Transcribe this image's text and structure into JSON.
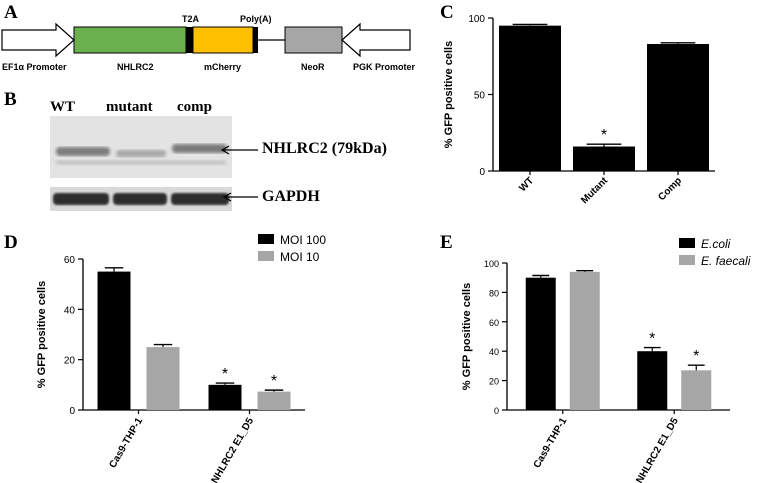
{
  "panels": {
    "a": "A",
    "b": "B",
    "c": "C",
    "d": "D",
    "e": "E"
  },
  "construct": {
    "t2a": "T2A",
    "polya": "Poly(A)",
    "ef1a": "EF1α Promoter",
    "nhlrc2": "NHLRC2",
    "mcherry": "mCherry",
    "neor": "NeoR",
    "pgk": "PGK Promoter",
    "colors": {
      "nhlrc2": "#6ab04c",
      "mcherry": "#ffc000",
      "neor": "#a6a6a6",
      "linker": "#000000"
    }
  },
  "blot": {
    "lanes": [
      "WT",
      "mutant",
      "comp"
    ],
    "band1_label": "NHLRC2 (79kDa)",
    "band2_label": "GAPDH"
  },
  "chart_data": [
    {
      "id": "C",
      "type": "bar",
      "categories": [
        "WT",
        "Mutant",
        "Comp"
      ],
      "series": [
        {
          "values": [
            95,
            16,
            83
          ],
          "errors": [
            0.8,
            1.5,
            0.8
          ],
          "color": "#000000",
          "annotations": [
            "",
            "*",
            ""
          ]
        }
      ],
      "ylabel": "% GFP positive cells",
      "ylim": [
        0,
        100
      ],
      "yticks": [
        0,
        50,
        100
      ]
    },
    {
      "id": "D",
      "type": "bar",
      "categories": [
        "Cas9-THP-1",
        "NHLRC2 E1_D5"
      ],
      "series": [
        {
          "name": "MOI 100",
          "values": [
            55,
            10
          ],
          "errors": [
            1.5,
            0.7
          ],
          "color": "#000000",
          "annotations": [
            "",
            "*"
          ]
        },
        {
          "name": "MOI 10",
          "values": [
            25,
            7.3
          ],
          "errors": [
            1.0,
            0.6
          ],
          "color": "#a6a6a6",
          "annotations": [
            "",
            "*"
          ]
        }
      ],
      "ylabel": "% GFP positive cells",
      "ylim": [
        0,
        60
      ],
      "yticks": [
        0,
        20,
        40,
        60
      ],
      "legend": "top-right"
    },
    {
      "id": "E",
      "type": "bar",
      "categories": [
        "Cas9-THP-1",
        "NHLRC2 E1_D5"
      ],
      "series": [
        {
          "name": "E.coli",
          "values": [
            90,
            40
          ],
          "errors": [
            1.5,
            2.5
          ],
          "color": "#000000",
          "annotations": [
            "",
            "*"
          ]
        },
        {
          "name": "E. faecali",
          "values": [
            94,
            27
          ],
          "errors": [
            0.8,
            3.5
          ],
          "color": "#a6a6a6",
          "annotations": [
            "",
            "*"
          ]
        }
      ],
      "ylabel": "% GFP positive cells",
      "ylim": [
        0,
        100
      ],
      "yticks": [
        0,
        20,
        40,
        60,
        80,
        100
      ],
      "legend": "top-right"
    }
  ]
}
